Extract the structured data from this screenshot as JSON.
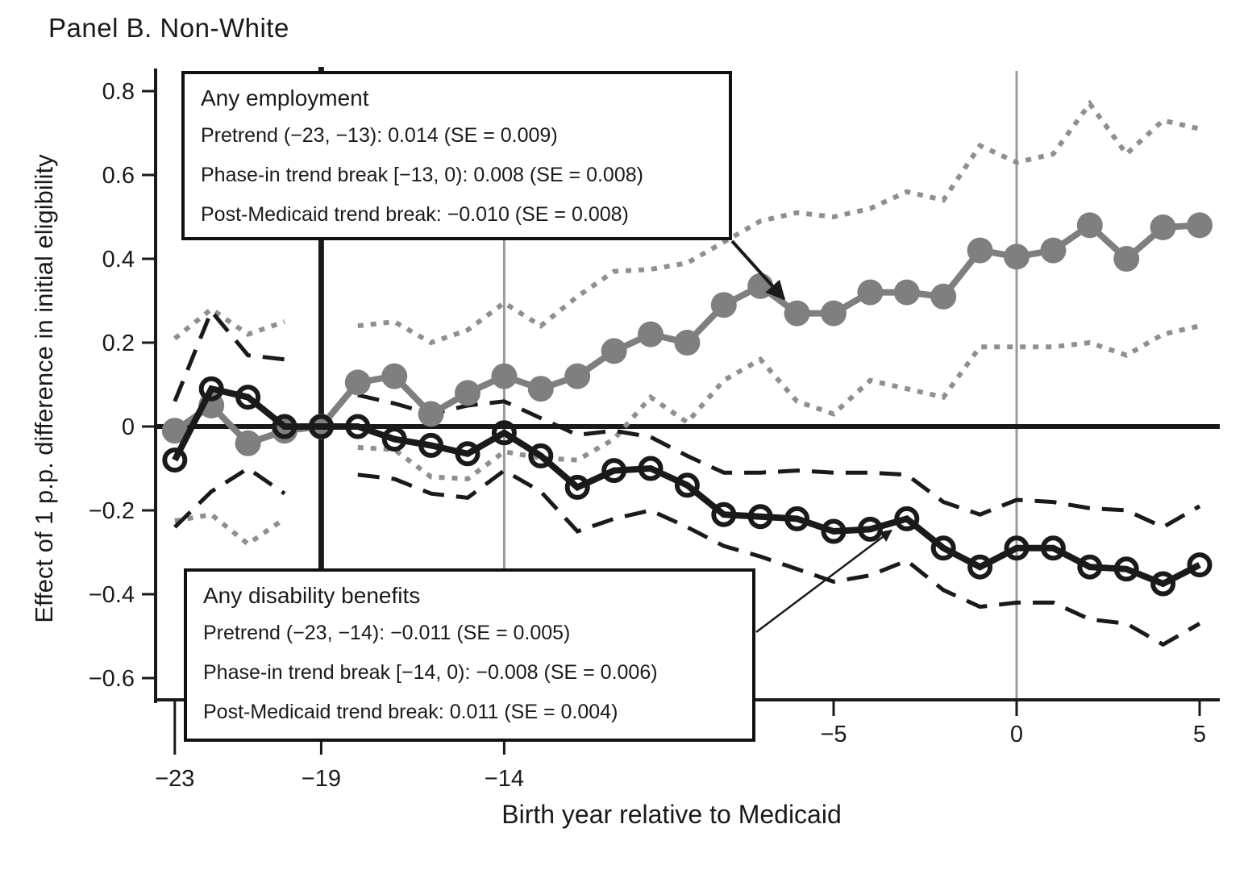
{
  "title": "Panel B. Non-White",
  "colors": {
    "black": "#1a1a1a",
    "gray_series": "#7f7f7f",
    "gray_band": "#8f8f8f",
    "gray_gridline": "#9a9a9a"
  },
  "annotations": {
    "employment": {
      "title": "Any employment",
      "lines": [
        "Pretrend (−23, −13): 0.014 (SE = 0.009)",
        "Phase-in trend break [−13, 0): 0.008 (SE = 0.008)",
        "Post-Medicaid trend break: −0.010 (SE = 0.008)"
      ],
      "arrow_target_x": -6
    },
    "disability": {
      "title": "Any disability benefits",
      "lines": [
        "Pretrend (−23, −14): −0.011 (SE = 0.005)",
        "Phase-in trend break [−14, 0): −0.008 (SE = 0.006)",
        "Post-Medicaid trend break: 0.011 (SE = 0.004)"
      ],
      "arrow_target_x": -3
    }
  },
  "chart_data": {
    "type": "line",
    "title": "Panel B. Non-White",
    "xlabel": "Birth year relative to Medicaid",
    "ylabel": "Effect of 1 p.p. difference in initial eligibility",
    "xlim": [
      -23.5,
      5.7
    ],
    "ylim": [
      -0.65,
      0.85
    ],
    "grid": false,
    "x": [
      -23,
      -22,
      -21,
      -20,
      -19,
      -18,
      -17,
      -16,
      -15,
      -14,
      -13,
      -12,
      -11,
      -10,
      -9,
      -8,
      -7,
      -6,
      -5,
      -4,
      -3,
      -2,
      -1,
      0,
      1,
      2,
      3,
      4,
      5
    ],
    "x_ticks": [
      {
        "value": -23,
        "label": "−23",
        "style": "long"
      },
      {
        "value": -19,
        "label": "−19",
        "style": "long"
      },
      {
        "value": -14,
        "label": "−14",
        "style": "long"
      },
      {
        "value": -5,
        "label": "−5",
        "style": "short"
      },
      {
        "value": 0,
        "label": "0",
        "style": "short"
      },
      {
        "value": 5,
        "label": "5",
        "style": "short"
      }
    ],
    "y_ticks": [
      {
        "value": 0.8,
        "label": "0.8"
      },
      {
        "value": 0.6,
        "label": "0.6"
      },
      {
        "value": 0.4,
        "label": "0.4"
      },
      {
        "value": 0.2,
        "label": "0.2"
      },
      {
        "value": 0,
        "label": "0"
      },
      {
        "value": -0.2,
        "label": "−0.2"
      },
      {
        "value": -0.4,
        "label": "−0.4"
      },
      {
        "value": -0.6,
        "label": "−0.6"
      }
    ],
    "vlines": [
      {
        "x": -19,
        "style": "thick-black"
      },
      {
        "x": -14,
        "style": "thin-gray"
      },
      {
        "x": 0,
        "style": "thin-gray"
      }
    ],
    "zero_line": true,
    "series": [
      {
        "name": "Any employment",
        "role": "main",
        "line": "solid",
        "marker": "filled-circle",
        "color": "gray_series",
        "values": [
          -0.01,
          0.05,
          -0.04,
          -0.01,
          0.0,
          0.105,
          0.12,
          0.03,
          0.08,
          0.12,
          0.09,
          0.12,
          0.18,
          0.22,
          0.2,
          0.29,
          0.335,
          0.27,
          0.27,
          0.32,
          0.32,
          0.31,
          0.42,
          0.405,
          0.42,
          0.48,
          0.4,
          0.475,
          0.48
        ]
      },
      {
        "name": "Any employment CI upper",
        "role": "band",
        "line": "dotted",
        "marker": "none",
        "color": "gray_band",
        "values": [
          0.21,
          0.28,
          0.22,
          0.25,
          null,
          0.24,
          0.25,
          0.2,
          0.23,
          0.295,
          0.24,
          0.31,
          0.37,
          0.375,
          0.39,
          0.44,
          0.49,
          0.51,
          0.5,
          0.52,
          0.56,
          0.54,
          0.67,
          0.63,
          0.65,
          0.77,
          0.65,
          0.73,
          0.71
        ]
      },
      {
        "name": "Any employment CI lower",
        "role": "band",
        "line": "dotted",
        "marker": "none",
        "color": "gray_band",
        "values": [
          -0.225,
          -0.21,
          -0.28,
          -0.22,
          null,
          -0.05,
          -0.055,
          -0.12,
          -0.125,
          -0.06,
          -0.075,
          -0.08,
          -0.03,
          0.07,
          0.01,
          0.11,
          0.16,
          0.06,
          0.03,
          0.11,
          0.09,
          0.07,
          0.19,
          0.19,
          0.19,
          0.2,
          0.17,
          0.22,
          0.24
        ]
      },
      {
        "name": "Any disability benefits",
        "role": "main",
        "line": "solid",
        "marker": "open-circle",
        "color": "black",
        "values": [
          -0.08,
          0.09,
          0.07,
          0.0,
          0.0,
          0.0,
          -0.03,
          -0.045,
          -0.065,
          -0.015,
          -0.07,
          -0.145,
          -0.105,
          -0.1,
          -0.14,
          -0.21,
          -0.215,
          -0.22,
          -0.25,
          -0.245,
          -0.22,
          -0.29,
          -0.335,
          -0.29,
          -0.29,
          -0.335,
          -0.34,
          -0.375,
          -0.33
        ]
      },
      {
        "name": "Any disability benefits CI upper",
        "role": "band",
        "line": "dashed",
        "marker": "none",
        "color": "black",
        "values": [
          0.06,
          0.275,
          0.17,
          0.16,
          null,
          0.075,
          0.055,
          0.03,
          0.05,
          0.06,
          0.02,
          -0.02,
          -0.01,
          -0.025,
          -0.07,
          -0.11,
          -0.11,
          -0.105,
          -0.11,
          -0.11,
          -0.115,
          -0.18,
          -0.21,
          -0.175,
          -0.18,
          -0.195,
          -0.2,
          -0.24,
          -0.19
        ]
      },
      {
        "name": "Any disability benefits CI lower",
        "role": "band",
        "line": "dashed",
        "marker": "none",
        "color": "black",
        "values": [
          -0.24,
          -0.155,
          -0.1,
          -0.16,
          null,
          -0.115,
          -0.125,
          -0.16,
          -0.17,
          -0.105,
          -0.155,
          -0.25,
          -0.22,
          -0.2,
          -0.24,
          -0.285,
          -0.31,
          -0.34,
          -0.37,
          -0.355,
          -0.32,
          -0.39,
          -0.43,
          -0.42,
          -0.42,
          -0.46,
          -0.47,
          -0.52,
          -0.47
        ]
      }
    ]
  }
}
